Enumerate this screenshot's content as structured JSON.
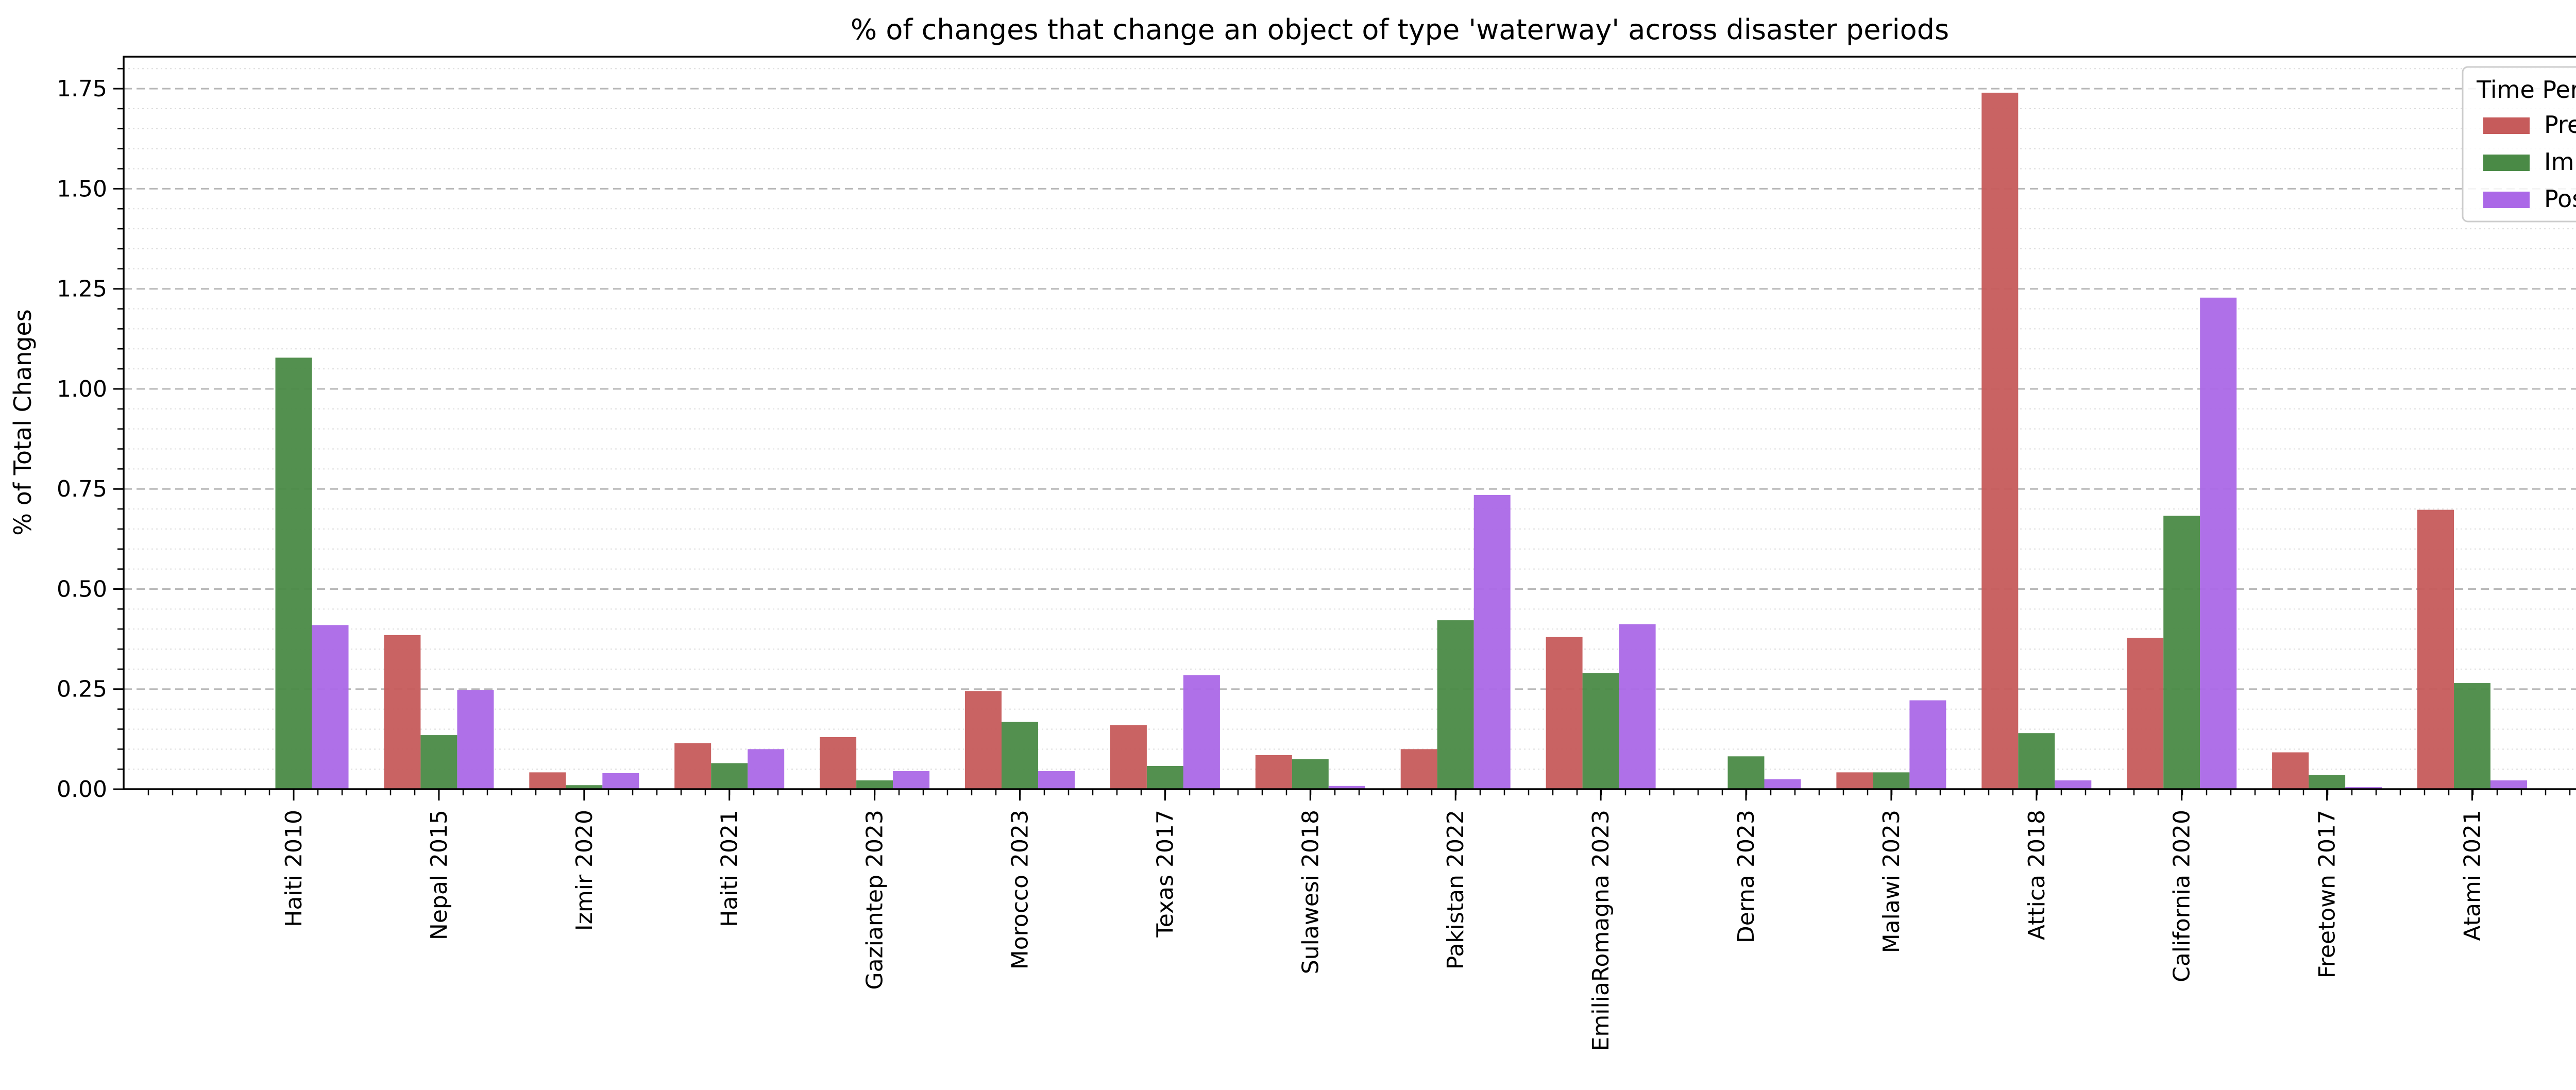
{
  "chart_data": {
    "type": "bar",
    "title": "% of changes that change an object of type 'waterway' across disaster periods",
    "xlabel": "",
    "ylabel": "% of Total Changes",
    "ylim": [
      0,
      1.83
    ],
    "yticks": [
      "0.00",
      "0.25",
      "0.50",
      "0.75",
      "1.00",
      "1.25",
      "1.50",
      "1.75"
    ],
    "grid": true,
    "legend_title": "Time Period",
    "legend_position": "top-right",
    "categories": [
      "Haiti 2010",
      "Nepal 2015",
      "Izmir 2020",
      "Haiti 2021",
      "Gaziantep 2023",
      "Morocco 2023",
      "Texas 2017",
      "Sulawesi 2018",
      "Pakistan 2022",
      "EmiliaRomagna 2023",
      "Derna 2023",
      "Malawi 2023",
      "Attica 2018",
      "California 2020",
      "Freetown 2017",
      "Atami 2021"
    ],
    "series": [
      {
        "name": "Pre",
        "color": "#c65b5b",
        "values": [
          0.0,
          0.385,
          0.042,
          0.115,
          0.13,
          0.245,
          0.16,
          0.085,
          0.1,
          0.38,
          0.0,
          0.042,
          1.74,
          0.378,
          0.092,
          0.698
        ]
      },
      {
        "name": "Imm",
        "color": "#4a8a46",
        "values": [
          1.078,
          0.135,
          0.01,
          0.065,
          0.022,
          0.168,
          0.058,
          0.075,
          0.422,
          0.29,
          0.082,
          0.042,
          0.14,
          0.683,
          0.036,
          0.265
        ]
      },
      {
        "name": "Post",
        "color": "#ab68e7",
        "values": [
          0.41,
          0.248,
          0.04,
          0.1,
          0.045,
          0.045,
          0.285,
          0.008,
          0.735,
          0.412,
          0.025,
          0.222,
          0.022,
          1.228,
          0.005,
          0.022
        ]
      }
    ]
  }
}
